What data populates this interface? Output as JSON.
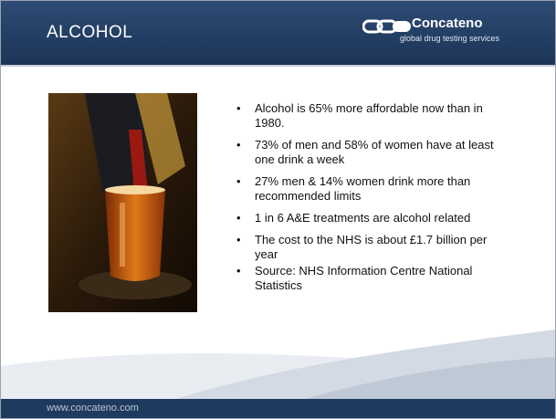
{
  "header": {
    "title": "ALCOHOL"
  },
  "logo": {
    "name": "Concateno",
    "tagline": "global drug testing services"
  },
  "bullets": [
    "Alcohol is 65% more affordable now than in 1980.",
    "73% of men and 58% of women have at least one drink a week",
    "27% men & 14% women drink more than recommended limits",
    "1 in 6 A&E treatments are alcohol related",
    "The cost to the NHS is about £1.7 billion per year"
  ],
  "source": "Source: NHS Information Centre National Statistics",
  "footer": {
    "url": "www.concateno.com"
  }
}
